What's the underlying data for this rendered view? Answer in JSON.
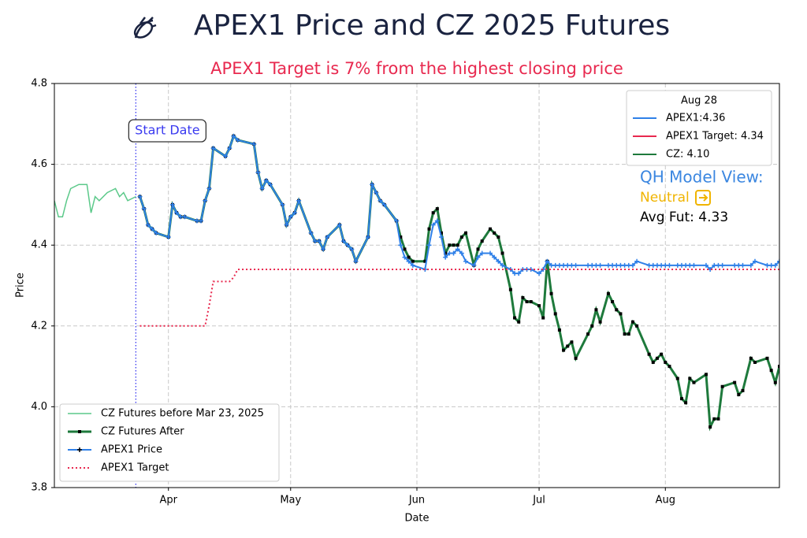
{
  "chart_data": {
    "type": "line",
    "title": "APEX1 Price and CZ 2025 Futures",
    "subtitle": "APEX1 Target is 7% from the highest closing price",
    "x_label": "Date",
    "y_label": "Price",
    "xlim": [
      63,
      241
    ],
    "xticks": [
      {
        "value": 91,
        "label": "Apr"
      },
      {
        "value": 121,
        "label": "May"
      },
      {
        "value": 152,
        "label": "Jun"
      },
      {
        "value": 182,
        "label": "Jul"
      },
      {
        "value": 213,
        "label": "Aug"
      }
    ],
    "ylim": [
      3.8,
      4.8
    ],
    "yticks": [
      3.8,
      {
        "value": 4,
        "label": "4.0"
      },
      4.2,
      4.4,
      4.6,
      4.8
    ],
    "grid": true,
    "legend": "lower left",
    "start_line": {
      "x": 83,
      "label": "Start Date",
      "color": "#3a3af0"
    },
    "series": [
      {
        "name": "CZ Futures before Mar 23, 2025",
        "color": "#5cc98a",
        "width": 1.5,
        "linestyle": "solid",
        "x": [
          63,
          64,
          65,
          66,
          67,
          69,
          71,
          72,
          73,
          74,
          76,
          78,
          79,
          80,
          81,
          83
        ],
        "values": [
          4.51,
          4.47,
          4.47,
          4.51,
          4.54,
          4.55,
          4.55,
          4.48,
          4.52,
          4.51,
          4.53,
          4.54,
          4.52,
          4.53,
          4.51,
          4.52
        ]
      },
      {
        "name": "CZ Futures After",
        "color": "#1e7a3c",
        "width": 3,
        "linestyle": "solid",
        "marker": "square",
        "x": [
          84,
          85,
          86,
          87,
          88,
          91,
          92,
          93,
          94,
          95,
          98,
          99,
          100,
          101,
          102,
          105,
          106,
          107,
          108,
          112,
          113,
          114,
          115,
          116,
          119,
          120,
          121,
          122,
          123,
          126,
          127,
          128,
          129,
          130,
          133,
          134,
          135,
          136,
          137,
          140,
          141,
          142,
          143,
          144,
          147,
          148,
          149,
          150,
          151,
          154,
          155,
          156,
          157,
          158,
          159,
          160,
          161,
          162,
          163,
          164,
          166,
          167,
          168,
          170,
          171,
          172,
          173,
          175,
          176,
          177,
          178,
          179,
          180,
          182,
          183,
          184,
          185,
          186,
          187,
          188,
          189,
          190,
          191,
          194,
          195,
          196,
          197,
          199,
          200,
          201,
          202,
          203,
          204,
          205,
          206,
          209,
          210,
          211,
          212,
          213,
          214,
          216,
          217,
          218,
          219,
          220,
          223,
          224,
          225,
          226,
          227,
          230,
          231,
          232,
          234,
          235,
          238,
          239,
          240,
          241
        ],
        "values": [
          4.52,
          4.49,
          4.45,
          4.44,
          4.43,
          4.42,
          4.5,
          4.48,
          4.47,
          4.47,
          4.46,
          4.46,
          4.51,
          4.54,
          4.64,
          4.62,
          4.64,
          4.67,
          4.66,
          4.65,
          4.58,
          4.54,
          4.56,
          4.55,
          4.5,
          4.45,
          4.47,
          4.48,
          4.51,
          4.43,
          4.41,
          4.41,
          4.39,
          4.42,
          4.45,
          4.41,
          4.4,
          4.39,
          4.36,
          4.42,
          4.55,
          4.53,
          4.51,
          4.5,
          4.46,
          4.42,
          4.39,
          4.37,
          4.36,
          4.36,
          4.44,
          4.48,
          4.49,
          4.43,
          4.38,
          4.4,
          4.4,
          4.4,
          4.42,
          4.43,
          4.35,
          4.39,
          4.41,
          4.44,
          4.43,
          4.42,
          4.38,
          4.29,
          4.22,
          4.21,
          4.27,
          4.26,
          4.26,
          4.25,
          4.22,
          4.36,
          4.28,
          4.23,
          4.19,
          4.14,
          4.15,
          4.16,
          4.12,
          4.18,
          4.2,
          4.24,
          4.21,
          4.28,
          4.26,
          4.24,
          4.23,
          4.18,
          4.18,
          4.21,
          4.2,
          4.13,
          4.11,
          4.12,
          4.13,
          4.11,
          4.1,
          4.07,
          4.02,
          4.01,
          4.07,
          4.06,
          4.08,
          3.95,
          3.97,
          3.97,
          4.05,
          4.06,
          4.03,
          4.04,
          4.12,
          4.11,
          4.12,
          4.09,
          4.06,
          4.1
        ]
      },
      {
        "name": "APEX1 Price",
        "color": "#2f80e8",
        "width": 2,
        "linestyle": "solid",
        "marker": "plus",
        "x": [
          84,
          85,
          86,
          87,
          88,
          91,
          92,
          93,
          94,
          95,
          98,
          99,
          100,
          101,
          102,
          105,
          106,
          107,
          108,
          112,
          113,
          114,
          115,
          116,
          119,
          120,
          121,
          122,
          123,
          126,
          127,
          128,
          129,
          130,
          133,
          134,
          135,
          136,
          137,
          140,
          141,
          142,
          143,
          144,
          147,
          148,
          149,
          150,
          151,
          154,
          155,
          156,
          157,
          158,
          159,
          160,
          161,
          162,
          163,
          164,
          166,
          167,
          168,
          170,
          171,
          172,
          173,
          175,
          176,
          177,
          178,
          179,
          180,
          182,
          183,
          184,
          185,
          186,
          187,
          188,
          189,
          190,
          191,
          194,
          195,
          196,
          197,
          199,
          200,
          201,
          202,
          203,
          204,
          205,
          206,
          209,
          210,
          211,
          212,
          213,
          214,
          216,
          217,
          218,
          219,
          220,
          223,
          224,
          225,
          226,
          227,
          230,
          231,
          232,
          234,
          235,
          238,
          239,
          240,
          241
        ],
        "values": [
          4.52,
          4.49,
          4.45,
          4.44,
          4.43,
          4.42,
          4.5,
          4.48,
          4.47,
          4.47,
          4.46,
          4.46,
          4.51,
          4.54,
          4.64,
          4.62,
          4.64,
          4.67,
          4.66,
          4.65,
          4.58,
          4.54,
          4.56,
          4.55,
          4.5,
          4.45,
          4.47,
          4.48,
          4.51,
          4.43,
          4.41,
          4.41,
          4.39,
          4.42,
          4.45,
          4.41,
          4.4,
          4.39,
          4.36,
          4.42,
          4.55,
          4.53,
          4.51,
          4.5,
          4.46,
          4.4,
          4.37,
          4.36,
          4.35,
          4.34,
          4.4,
          4.45,
          4.46,
          4.42,
          4.37,
          4.38,
          4.38,
          4.39,
          4.38,
          4.36,
          4.35,
          4.37,
          4.38,
          4.38,
          4.37,
          4.36,
          4.35,
          4.34,
          4.33,
          4.33,
          4.34,
          4.34,
          4.34,
          4.33,
          4.34,
          4.36,
          4.35,
          4.35,
          4.35,
          4.35,
          4.35,
          4.35,
          4.35,
          4.35,
          4.35,
          4.35,
          4.35,
          4.35,
          4.35,
          4.35,
          4.35,
          4.35,
          4.35,
          4.35,
          4.36,
          4.35,
          4.35,
          4.35,
          4.35,
          4.35,
          4.35,
          4.35,
          4.35,
          4.35,
          4.35,
          4.35,
          4.35,
          4.34,
          4.35,
          4.35,
          4.35,
          4.35,
          4.35,
          4.35,
          4.35,
          4.36,
          4.35,
          4.35,
          4.35,
          4.36
        ]
      },
      {
        "name": "APEX1 Target",
        "color": "#e8294f",
        "width": 2,
        "linestyle": "dotted",
        "x": [
          84,
          100,
          101,
          102,
          106,
          107,
          108,
          241
        ],
        "values": [
          4.2,
          4.2,
          4.25,
          4.31,
          4.31,
          4.32,
          4.34,
          4.34
        ]
      }
    ],
    "summary_legend": {
      "title": "Aug 28",
      "entries": [
        {
          "label": "APEX1:4.36",
          "color": "#2f80e8"
        },
        {
          "label": "APEX1 Target: 4.34",
          "color": "#e8294f"
        },
        {
          "label": "CZ: 4.10",
          "color": "#1e7a3c"
        }
      ]
    },
    "model_view": {
      "heading": "QH Model View:",
      "signal": "Neutral",
      "avg": "Avg Fut: 4.33"
    }
  }
}
